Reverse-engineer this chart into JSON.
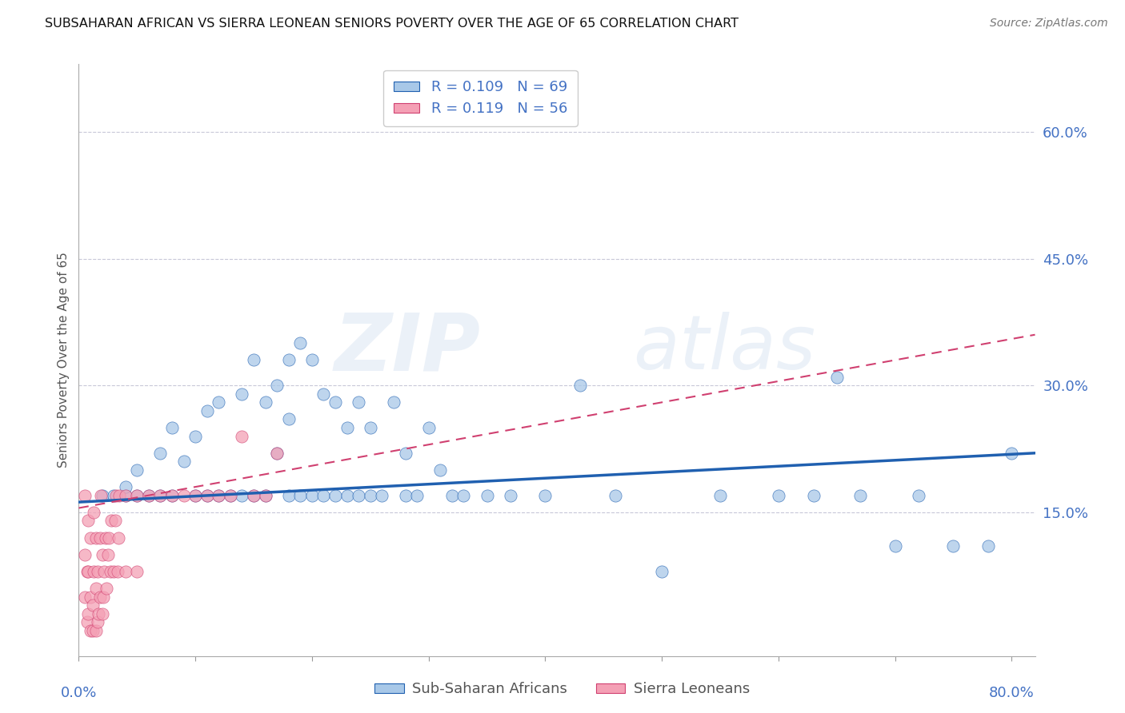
{
  "title": "SUBSAHARAN AFRICAN VS SIERRA LEONEAN SENIORS POVERTY OVER THE AGE OF 65 CORRELATION CHART",
  "source": "Source: ZipAtlas.com",
  "ylabel": "Seniors Poverty Over the Age of 65",
  "xlim": [
    0.0,
    0.82
  ],
  "ylim": [
    -0.02,
    0.68
  ],
  "plot_ylim": [
    0.0,
    0.65
  ],
  "right_ytick_positions": [
    0.15,
    0.3,
    0.45,
    0.6
  ],
  "right_yticklabels": [
    "15.0%",
    "30.0%",
    "45.0%",
    "60.0%"
  ],
  "blue_color": "#a8c8e8",
  "pink_color": "#f4a0b5",
  "blue_line_color": "#2060b0",
  "pink_line_color": "#d04070",
  "axis_label_color": "#4472c4",
  "grid_color": "#c8c8d8",
  "blue_scatter_x": [
    0.02,
    0.03,
    0.04,
    0.04,
    0.05,
    0.05,
    0.06,
    0.07,
    0.07,
    0.08,
    0.08,
    0.09,
    0.1,
    0.1,
    0.11,
    0.11,
    0.12,
    0.12,
    0.13,
    0.14,
    0.14,
    0.15,
    0.15,
    0.16,
    0.16,
    0.17,
    0.17,
    0.18,
    0.18,
    0.18,
    0.19,
    0.19,
    0.2,
    0.2,
    0.21,
    0.21,
    0.22,
    0.22,
    0.23,
    0.23,
    0.24,
    0.24,
    0.25,
    0.25,
    0.26,
    0.27,
    0.28,
    0.28,
    0.29,
    0.3,
    0.31,
    0.32,
    0.33,
    0.35,
    0.37,
    0.4,
    0.43,
    0.46,
    0.5,
    0.55,
    0.6,
    0.63,
    0.65,
    0.67,
    0.7,
    0.72,
    0.75,
    0.78,
    0.8
  ],
  "blue_scatter_y": [
    0.17,
    0.17,
    0.17,
    0.18,
    0.17,
    0.2,
    0.17,
    0.22,
    0.17,
    0.25,
    0.17,
    0.21,
    0.24,
    0.17,
    0.27,
    0.17,
    0.28,
    0.17,
    0.17,
    0.29,
    0.17,
    0.33,
    0.17,
    0.28,
    0.17,
    0.3,
    0.22,
    0.33,
    0.26,
    0.17,
    0.35,
    0.17,
    0.33,
    0.17,
    0.29,
    0.17,
    0.28,
    0.17,
    0.25,
    0.17,
    0.28,
    0.17,
    0.25,
    0.17,
    0.17,
    0.28,
    0.22,
    0.17,
    0.17,
    0.25,
    0.2,
    0.17,
    0.17,
    0.17,
    0.17,
    0.17,
    0.3,
    0.17,
    0.08,
    0.17,
    0.17,
    0.17,
    0.31,
    0.17,
    0.11,
    0.17,
    0.11,
    0.11,
    0.22
  ],
  "pink_scatter_x": [
    0.005,
    0.005,
    0.005,
    0.007,
    0.007,
    0.008,
    0.008,
    0.008,
    0.01,
    0.01,
    0.01,
    0.012,
    0.012,
    0.013,
    0.013,
    0.015,
    0.015,
    0.015,
    0.016,
    0.016,
    0.017,
    0.018,
    0.018,
    0.019,
    0.02,
    0.02,
    0.021,
    0.022,
    0.023,
    0.024,
    0.025,
    0.026,
    0.027,
    0.028,
    0.03,
    0.031,
    0.032,
    0.033,
    0.034,
    0.035,
    0.04,
    0.04,
    0.05,
    0.05,
    0.06,
    0.07,
    0.08,
    0.09,
    0.1,
    0.11,
    0.12,
    0.13,
    0.14,
    0.15,
    0.16,
    0.17
  ],
  "pink_scatter_y": [
    0.05,
    0.1,
    0.17,
    0.02,
    0.08,
    0.03,
    0.08,
    0.14,
    0.01,
    0.05,
    0.12,
    0.01,
    0.04,
    0.08,
    0.15,
    0.01,
    0.06,
    0.12,
    0.02,
    0.08,
    0.03,
    0.05,
    0.12,
    0.17,
    0.03,
    0.1,
    0.05,
    0.08,
    0.12,
    0.06,
    0.1,
    0.12,
    0.08,
    0.14,
    0.08,
    0.14,
    0.17,
    0.08,
    0.12,
    0.17,
    0.17,
    0.08,
    0.17,
    0.08,
    0.17,
    0.17,
    0.17,
    0.17,
    0.17,
    0.17,
    0.17,
    0.17,
    0.24,
    0.17,
    0.17,
    0.22
  ],
  "blue_trend_x0": 0.0,
  "blue_trend_x1": 0.82,
  "blue_trend_y0": 0.162,
  "blue_trend_y1": 0.22,
  "pink_trend_x0": 0.0,
  "pink_trend_x1": 0.82,
  "pink_trend_y0": 0.155,
  "pink_trend_y1": 0.36,
  "legend_r1_text": "R = 0.109   N = 69",
  "legend_r2_text": "R = 0.119   N = 56",
  "bottom_legend_labels": [
    "Sub-Saharan Africans",
    "Sierra Leoneans"
  ],
  "watermark_zip": "ZIP",
  "watermark_atlas": "atlas"
}
